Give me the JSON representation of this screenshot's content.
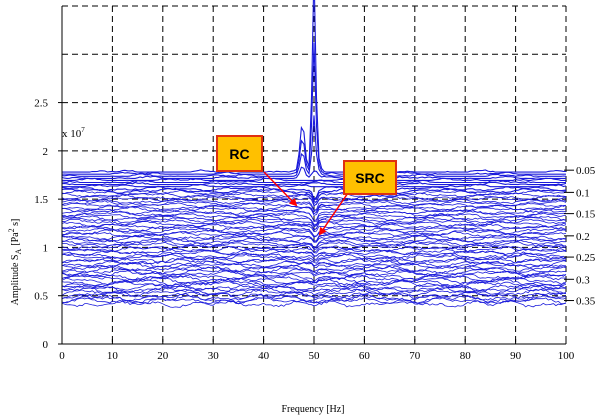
{
  "chart_data": {
    "type": "line",
    "title": "",
    "xlabel": "Frequency [Hz]",
    "ylabel_main": "Amplitude S",
    "ylabel_sub": "A",
    "ylabel_unit_open": "[Pa",
    "ylabel_sup": "2",
    "ylabel_unit_close": " s]",
    "y_multiplier_base": "x 10",
    "y_multiplier_exp": "7",
    "xlim": [
      0,
      100
    ],
    "ylim": [
      0,
      3.5
    ],
    "x_ticks": [
      "0",
      "10",
      "20",
      "30",
      "40",
      "50",
      "60",
      "70",
      "80",
      "90",
      "100"
    ],
    "x_tick_values": [
      0,
      10,
      20,
      30,
      40,
      50,
      60,
      70,
      80,
      90,
      100
    ],
    "y_ticks": [
      "0",
      "0.5",
      "1",
      "1.5",
      "2",
      "2.5"
    ],
    "y_tick_values": [
      0,
      0.5,
      1,
      1.5,
      2,
      2.5
    ],
    "right_labels": [
      "0.05",
      "0.1",
      "0.15",
      "0.2",
      "0.25",
      "0.3",
      "0.35"
    ],
    "right_label_values": [
      1.8,
      1.57,
      1.35,
      1.12,
      0.9,
      0.67,
      0.45
    ],
    "series_color": "#1a1adb",
    "series_count": 64,
    "baseline_top": 1.78,
    "baseline_bottom": 0.42,
    "peaks": [
      {
        "x": 50.0,
        "y": 3.88,
        "width": 0.5
      },
      {
        "x": 47.7,
        "y": 2.28,
        "width": 0.7
      },
      {
        "x": 50.2,
        "y": 2.1,
        "width": 0.9
      }
    ],
    "grid": true,
    "annotations": [
      {
        "label": "RC",
        "target_x": 47.4,
        "target_y": 1.82
      },
      {
        "label": "SRC",
        "target_x": 51.5,
        "target_y": 1.55
      }
    ],
    "callout_fill": "#ffc000",
    "callout_border": "#e03010",
    "arrow_color": "#ff0000"
  }
}
